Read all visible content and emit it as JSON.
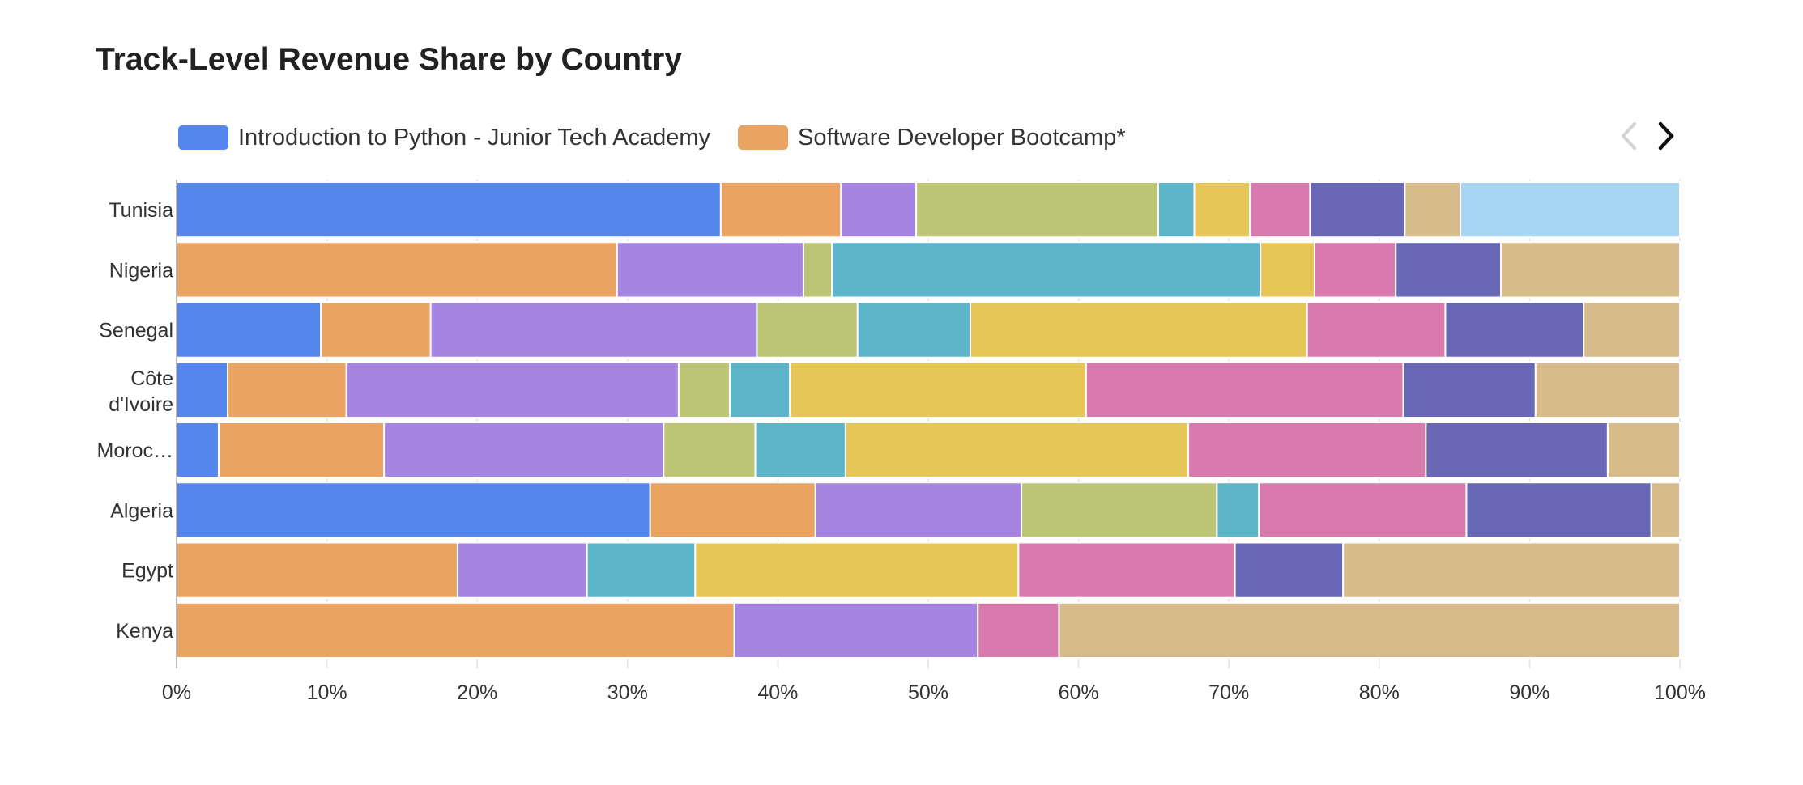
{
  "chart_data": {
    "type": "bar",
    "orientation": "horizontal",
    "stacked": "percent",
    "title": "Track-Level Revenue Share by Country",
    "xlabel": "",
    "ylabel": "",
    "xlim": [
      0,
      100
    ],
    "x_ticks": [
      "0%",
      "10%",
      "20%",
      "30%",
      "40%",
      "50%",
      "60%",
      "70%",
      "80%",
      "90%",
      "100%"
    ],
    "grid": "vertical",
    "legend": {
      "placement": "top",
      "paginated": true,
      "visible_entries": [
        "Introduction to Python - Junior Tech Academy",
        "Software Developer Bootcamp*"
      ]
    },
    "categories": [
      "Tunisia",
      "Nigeria",
      "Senegal",
      "Côte d'Ivoire",
      "Moroc…",
      "Algeria",
      "Egypt",
      "Kenya"
    ],
    "series": [
      {
        "name": "Introduction to Python - Junior Tech Academy",
        "color": "#5586ee",
        "values": [
          36.2,
          0,
          9.6,
          3.4,
          2.8,
          31.5,
          0,
          0
        ]
      },
      {
        "name": "Software Developer Bootcamp*",
        "color": "#eba362",
        "color_only": true,
        "values": [
          8.0,
          29.3,
          7.3,
          7.9,
          11.0,
          11.0,
          18.7,
          37.1
        ]
      },
      {
        "color": "#a684e2",
        "values": [
          5.0,
          12.4,
          21.7,
          22.1,
          18.6,
          13.7,
          8.6,
          16.2
        ]
      },
      {
        "color": "#bbc574",
        "values": [
          16.1,
          1.9,
          6.7,
          3.4,
          6.1,
          13.0,
          0,
          0
        ]
      },
      {
        "color": "#5cb5c8",
        "values": [
          2.4,
          28.5,
          7.5,
          4.0,
          6.0,
          2.8,
          7.2,
          0
        ]
      },
      {
        "color": "#e6c657",
        "values": [
          3.7,
          3.6,
          22.4,
          19.7,
          22.8,
          0,
          21.5,
          0
        ]
      },
      {
        "color": "#d97aae",
        "values": [
          4.0,
          5.4,
          9.2,
          21.1,
          15.8,
          13.8,
          14.4,
          5.4
        ]
      },
      {
        "color": "#6968b7",
        "values": [
          6.3,
          7.0,
          9.2,
          8.8,
          12.1,
          12.3,
          7.2,
          0
        ]
      },
      {
        "color": "#d7bb8a",
        "values": [
          3.7,
          11.9,
          6.4,
          9.6,
          4.8,
          1.9,
          22.4,
          41.3
        ]
      },
      {
        "color": "#a7d6f3",
        "values": [
          14.6,
          0,
          0,
          0,
          0,
          0,
          0,
          0
        ]
      }
    ]
  }
}
